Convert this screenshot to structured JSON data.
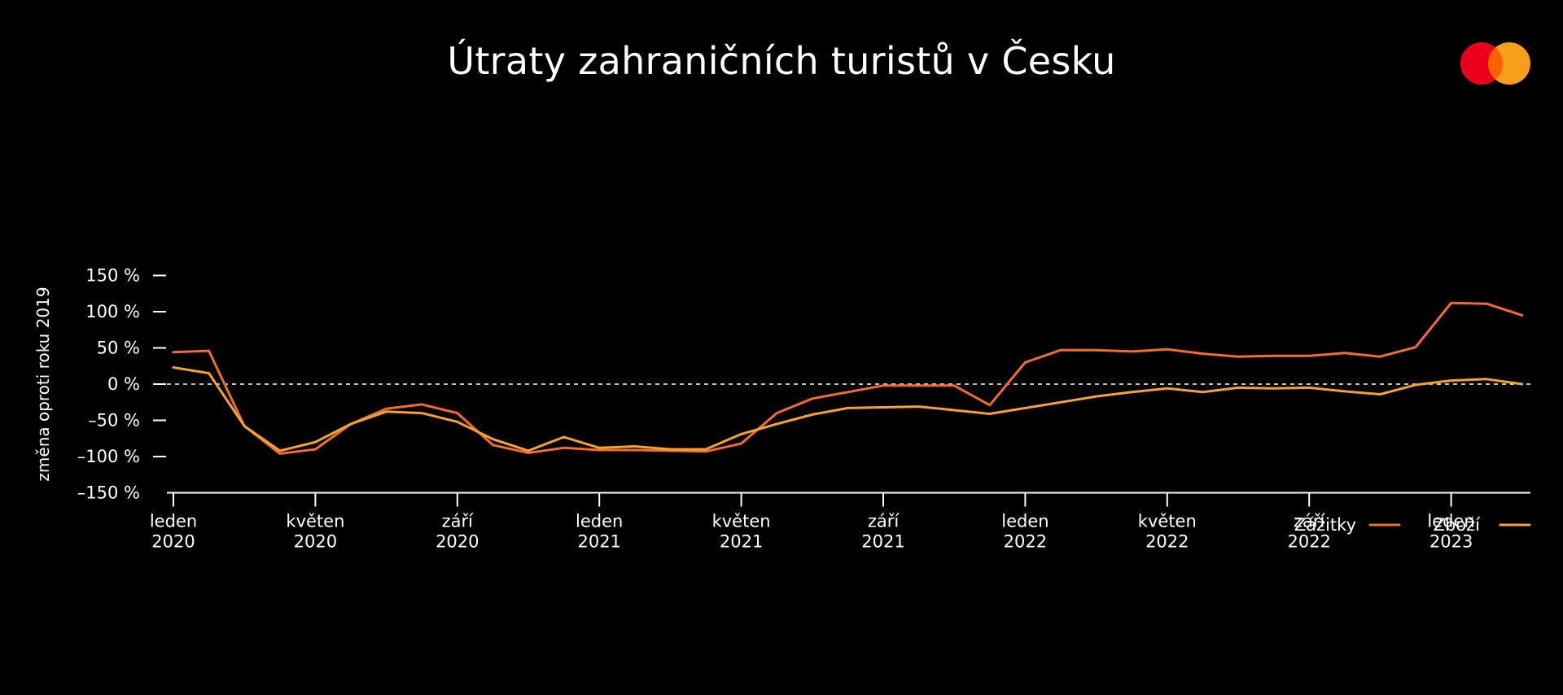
{
  "chart_data": {
    "type": "line",
    "title": "Útraty zahraničních turistů v Česku",
    "ylabel": "změna oproti roku 2019",
    "ylim": [
      -150,
      150
    ],
    "yticks": [
      150,
      100,
      50,
      0,
      -50,
      -100,
      -150
    ],
    "ytick_labels": [
      "150 %",
      "100 %",
      "50 %",
      "0 %",
      "–50 %",
      "–100 %",
      "–150 %"
    ],
    "zero_line": "dashed",
    "x": [
      "2020-01",
      "2020-02",
      "2020-03",
      "2020-04",
      "2020-05",
      "2020-06",
      "2020-07",
      "2020-08",
      "2020-09",
      "2020-10",
      "2020-11",
      "2020-12",
      "2021-01",
      "2021-02",
      "2021-03",
      "2021-04",
      "2021-05",
      "2021-06",
      "2021-07",
      "2021-08",
      "2021-09",
      "2021-10",
      "2021-11",
      "2021-12",
      "2022-01",
      "2022-02",
      "2022-03",
      "2022-04",
      "2022-05",
      "2022-06",
      "2022-07",
      "2022-08",
      "2022-09",
      "2022-10",
      "2022-11",
      "2022-12",
      "2023-01",
      "2023-02",
      "2023-03"
    ],
    "xticks": [
      {
        "x": "2020-01",
        "label": [
          "leden",
          "2020"
        ]
      },
      {
        "x": "2020-05",
        "label": [
          "květen",
          "2020"
        ]
      },
      {
        "x": "2020-09",
        "label": [
          "září",
          "2020"
        ]
      },
      {
        "x": "2021-01",
        "label": [
          "leden",
          "2021"
        ]
      },
      {
        "x": "2021-05",
        "label": [
          "květen",
          "2021"
        ]
      },
      {
        "x": "2021-09",
        "label": [
          "září",
          "2021"
        ]
      },
      {
        "x": "2022-01",
        "label": [
          "leden",
          "2022"
        ]
      },
      {
        "x": "2022-05",
        "label": [
          "květen",
          "2022"
        ]
      },
      {
        "x": "2022-09",
        "label": [
          "září",
          "2022"
        ]
      },
      {
        "x": "2023-01",
        "label": [
          "leden",
          "2023"
        ]
      }
    ],
    "series": [
      {
        "name": "Zážitky",
        "color": "#f26b2f",
        "values": [
          44,
          46,
          -58,
          -96,
          -90,
          -55,
          -34,
          -28,
          -40,
          -84,
          -95,
          -88,
          -91,
          -91,
          -92,
          -93,
          -82,
          -40,
          -20,
          -11,
          -2,
          -2,
          -2,
          -29,
          30,
          47,
          47,
          45,
          48,
          42,
          38,
          39,
          39,
          43,
          38,
          51,
          112,
          111,
          95
        ]
      },
      {
        "name": "Zboží",
        "color": "#f4a233",
        "values": [
          23,
          15,
          -58,
          -92,
          -80,
          -55,
          -38,
          -40,
          -52,
          -76,
          -92,
          -73,
          -88,
          -86,
          -90,
          -90,
          -69,
          -55,
          -42,
          -33,
          -32,
          -31,
          -36,
          -41,
          -33,
          -25,
          -17,
          -11,
          -6,
          -11,
          -5,
          -6,
          -5,
          -10,
          -14,
          -1,
          5,
          7,
          0
        ]
      }
    ],
    "legend": {
      "position": "bottom-right"
    }
  },
  "logo": {
    "name": "mastercard-logo",
    "colors": {
      "left": "#eb001b",
      "right": "#f79e1b",
      "overlap": "#ff5f00"
    }
  }
}
